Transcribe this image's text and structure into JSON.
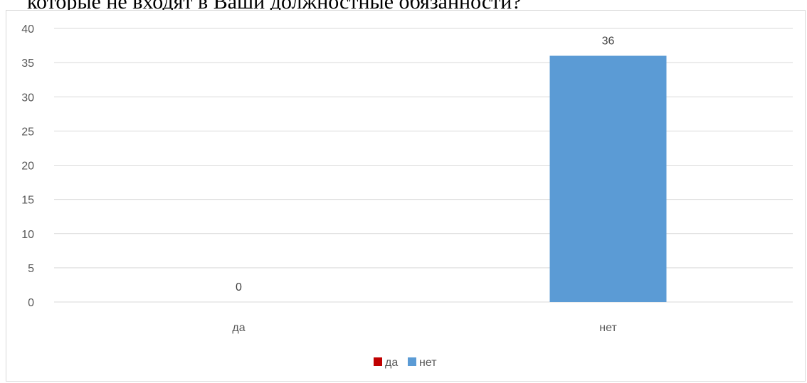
{
  "document": {
    "cut_off_text": "которые не входят в Ваши должностные обязанности?"
  },
  "chart_data": {
    "type": "bar",
    "categories": [
      "да",
      "нет"
    ],
    "values": [
      0,
      36
    ],
    "data_labels": [
      "0",
      "36"
    ],
    "colors": [
      "#c00000",
      "#5b9bd5"
    ],
    "ylim": [
      0,
      40
    ],
    "yticks": [
      0,
      5,
      10,
      15,
      20,
      25,
      30,
      35,
      40
    ],
    "grid": true,
    "legend": {
      "position": "bottom",
      "entries": [
        {
          "label": "да",
          "color": "#c00000"
        },
        {
          "label": "нет",
          "color": "#5b9bd5"
        }
      ]
    }
  }
}
